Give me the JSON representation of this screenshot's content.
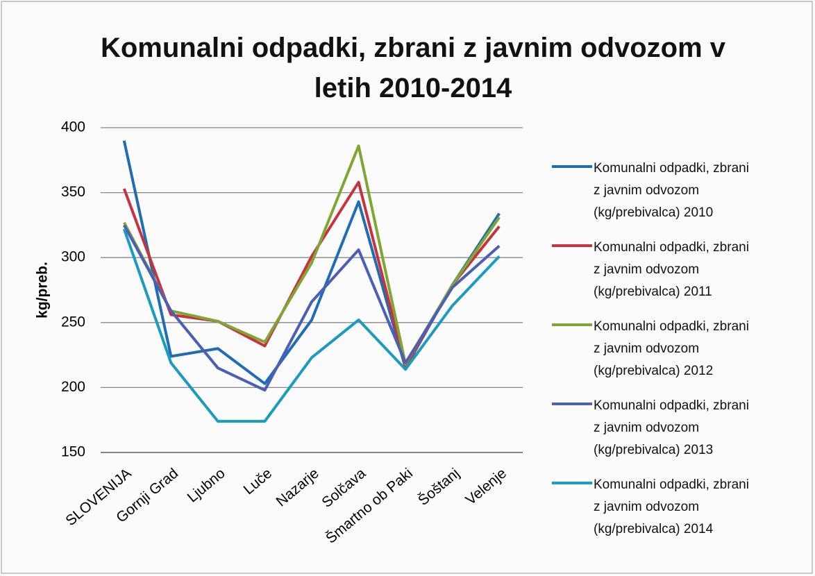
{
  "chart_data": {
    "type": "line",
    "title": "Komunalni odpadki, zbrani z javnim odvozom v letih 2010-2014",
    "y_label": "kg/preb.",
    "categories": [
      "SLOVENIJA",
      "Gornji Grad",
      "Ljubno",
      "Luče",
      "Nazarje",
      "Solčava",
      "Šmartno ob Paki",
      "Šoštanj",
      "Velenje"
    ],
    "ylim": [
      150,
      400
    ],
    "yticks": [
      150,
      200,
      250,
      300,
      350,
      400
    ],
    "grid": true,
    "legend": "right",
    "series": [
      {
        "name": "Komunalni odpadki, zbrani z javnim odvozom (kg/prebivalca) 2010",
        "color": "#1f6db5",
        "values": [
          390,
          224,
          230,
          203,
          252,
          343,
          215,
          279,
          334
        ]
      },
      {
        "name": "Komunalni odpadki, zbrani z javnim odvozom (kg/prebivalca) 2011",
        "color": "#c8323f",
        "values": [
          353,
          256,
          251,
          232,
          301,
          358,
          216,
          279,
          324
        ]
      },
      {
        "name": "Komunalni odpadki, zbrani z javnim odvozom (kg/prebivalca) 2012",
        "color": "#7fa632",
        "values": [
          327,
          259,
          251,
          235,
          296,
          386,
          218,
          279,
          331
        ]
      },
      {
        "name": "Komunalni odpadki, zbrani z javnim odvozom (kg/prebivalca) 2013",
        "color": "#4a5fb5",
        "values": [
          325,
          259,
          215,
          198,
          266,
          306,
          219,
          277,
          309
        ]
      },
      {
        "name": "Komunalni odpadki, zbrani z javnim odvozom (kg/prebivalca) 2014",
        "color": "#1a9bc0",
        "values": [
          322,
          219,
          174,
          174,
          223,
          252,
          214,
          263,
          301
        ]
      }
    ]
  }
}
